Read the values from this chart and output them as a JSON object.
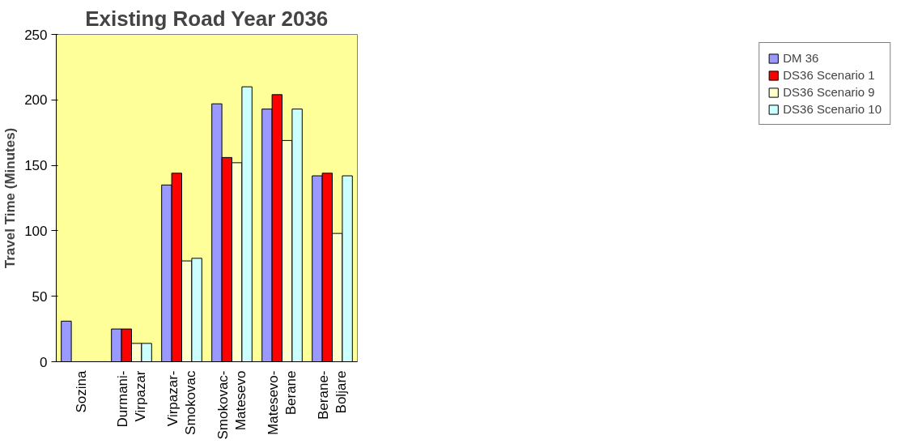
{
  "chart_data": {
    "type": "bar",
    "title": "Existing Road Year 2036",
    "ylabel": "Travel Time (Minutes)",
    "categories": [
      "Sozina",
      "Durmani-Virpazar",
      "Virpazar-Smokovac",
      "Smokovac-Matesevo",
      "Matesevo-Berane",
      "Berane-Boljare"
    ],
    "series": [
      {
        "name": "DM 36",
        "color": "#9999ff",
        "values": [
          31,
          25,
          135,
          197,
          193,
          142
        ]
      },
      {
        "name": "DS36 Scenario 1",
        "color": "#ff0000",
        "values": [
          null,
          25,
          144,
          156,
          204,
          144
        ]
      },
      {
        "name": "DS36 Scenario 9",
        "color": "#ffffcc",
        "values": [
          null,
          14,
          77,
          152,
          169,
          98
        ]
      },
      {
        "name": "DS36 Scenario 10",
        "color": "#ccffff",
        "values": [
          null,
          14,
          79,
          210,
          193,
          142
        ]
      }
    ],
    "ylim": [
      0,
      250
    ],
    "yticks": [
      0,
      50,
      100,
      150,
      200,
      250
    ],
    "grid": false,
    "legend": "right"
  }
}
